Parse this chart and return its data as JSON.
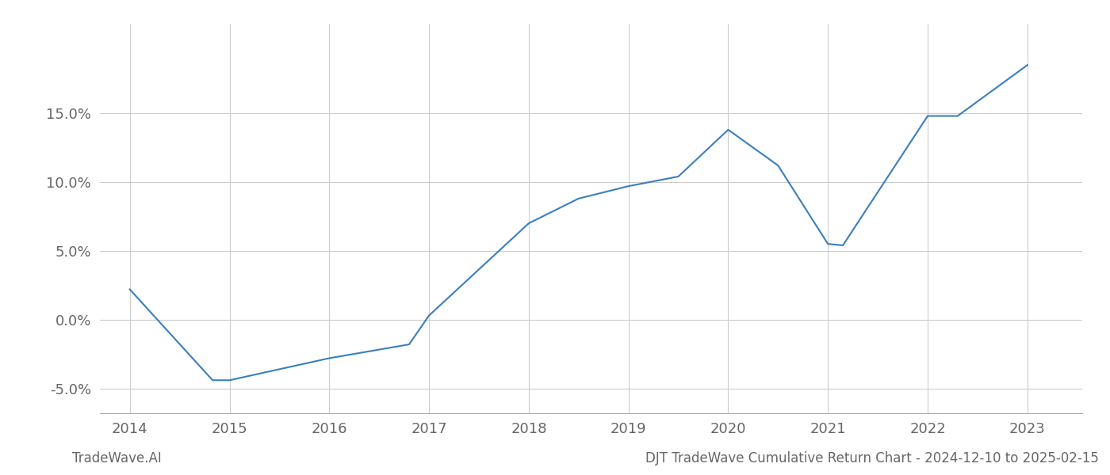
{
  "x_years": [
    2014.0,
    2014.83,
    2015.0,
    2016.0,
    2016.8,
    2017.0,
    2018.0,
    2018.5,
    2019.0,
    2019.5,
    2020.0,
    2020.5,
    2021.0,
    2021.15,
    2022.0,
    2022.3,
    2023.0
  ],
  "y_values": [
    0.022,
    -0.044,
    -0.044,
    -0.028,
    -0.018,
    0.003,
    0.07,
    0.088,
    0.097,
    0.104,
    0.138,
    0.112,
    0.055,
    0.054,
    0.148,
    0.148,
    0.185
  ],
  "line_color": "#3a7ebf",
  "line_width": 1.5,
  "background_color": "#ffffff",
  "grid_color": "#cccccc",
  "text_color": "#666666",
  "footer_left": "TradeWave.AI",
  "footer_right": "DJT TradeWave Cumulative Return Chart - 2024-12-10 to 2025-02-15",
  "yticks": [
    -0.05,
    0.0,
    0.05,
    0.1,
    0.15
  ],
  "ytick_labels": [
    "-5.0%",
    "0.0%",
    "5.0%",
    "10.0%",
    "15.0%"
  ],
  "xticks": [
    2014,
    2015,
    2016,
    2017,
    2018,
    2019,
    2020,
    2021,
    2022,
    2023
  ],
  "xlim": [
    2013.7,
    2023.55
  ],
  "ylim": [
    -0.068,
    0.215
  ]
}
